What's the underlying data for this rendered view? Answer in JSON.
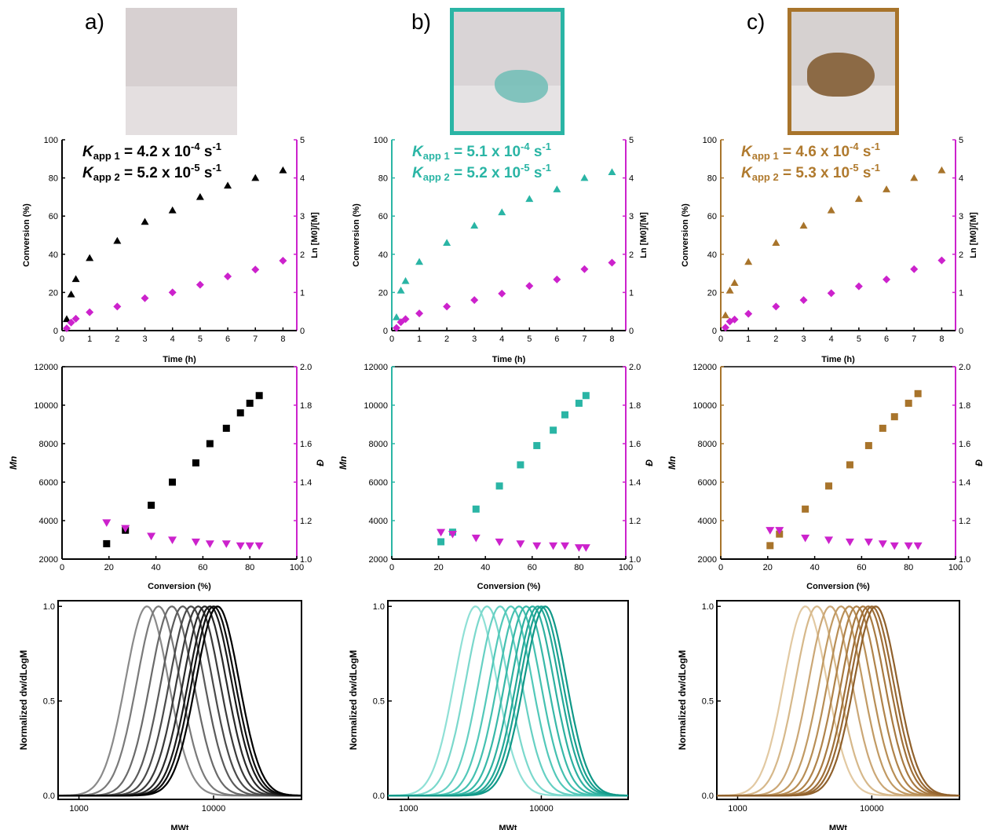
{
  "columns": [
    {
      "label": "a)",
      "color": "#000000",
      "frame": null,
      "ann": [
        {
          "pre": "app 1",
          "val": "4.2 x 10",
          "exp": "-4"
        },
        {
          "pre": "app 2",
          "val": "5.2 x 10",
          "exp": "-5"
        }
      ],
      "ann_color": "#000000",
      "mw_colors": [
        "#8a8a8a",
        "#7a7a7a",
        "#6a6a6a",
        "#5a5a5a",
        "#4a4a4a",
        "#3a3a3a",
        "#2a2a2a",
        "#1a1a1a",
        "#0d0d0d",
        "#000000"
      ]
    },
    {
      "label": "b)",
      "color": "#2ab5a5",
      "frame": "#2ab5a5",
      "ann": [
        {
          "pre": "app 1",
          "val": "5.1 x 10",
          "exp": "-4"
        },
        {
          "pre": "app 2",
          "val": "5.2 x 10",
          "exp": "-5"
        }
      ],
      "ann_color": "#2ab5a5",
      "mw_colors": [
        "#8fe0d6",
        "#7ad8cc",
        "#66d0c3",
        "#52c8b9",
        "#44c0b0",
        "#38b8a8",
        "#2eb0a0",
        "#24a898",
        "#1aa090",
        "#119888"
      ]
    },
    {
      "label": "c)",
      "color": "#a8742b",
      "frame": "#a8742b",
      "ann": [
        {
          "pre": "app 1",
          "val": "4.6 x 10",
          "exp": "-4"
        },
        {
          "pre": "app 2",
          "val": "5.3 x 10",
          "exp": "-5"
        }
      ],
      "ann_color": "#b07a2e",
      "mw_colors": [
        "#e2c9a2",
        "#d6b88a",
        "#cba776",
        "#c19a63",
        "#b88e55",
        "#b0834a",
        "#a87a41",
        "#a07039",
        "#986832",
        "#90612c"
      ]
    }
  ],
  "chart_data": [
    {
      "type": "scatter",
      "panel": "kinetics",
      "xlabel": "Time (h)",
      "ylabel": "Conversion (%)",
      "y2label": "Ln [M0]/[M]",
      "xlim": [
        0,
        8.5
      ],
      "ylim": [
        0,
        100
      ],
      "y2lim": [
        0,
        5
      ],
      "xticks": [
        "0",
        "1",
        "2",
        "3",
        "4",
        "5",
        "6",
        "7",
        "8"
      ],
      "yticks": [
        "0",
        "20",
        "40",
        "60",
        "80",
        "100"
      ],
      "y2ticks": [
        "0",
        "1",
        "2",
        "3",
        "4",
        "5"
      ],
      "series_ids": [
        "conversion",
        "ln_m0_m"
      ],
      "columns": [
        {
          "conversion": {
            "x": [
              0.17,
              0.33,
              0.5,
              1,
              2,
              3,
              4,
              5,
              6,
              7,
              8
            ],
            "y": [
              6,
              19,
              27,
              38,
              47,
              57,
              63,
              70,
              76,
              80,
              84
            ]
          },
          "ln_m0_m": {
            "x": [
              0.17,
              0.33,
              0.5,
              1,
              2,
              3,
              4,
              5,
              6,
              7,
              8
            ],
            "y": [
              0.06,
              0.21,
              0.31,
              0.48,
              0.63,
              0.85,
              1.0,
              1.2,
              1.42,
              1.6,
              1.83
            ]
          }
        },
        {
          "conversion": {
            "x": [
              0.17,
              0.33,
              0.5,
              1,
              2,
              3,
              4,
              5,
              6,
              7,
              8
            ],
            "y": [
              7,
              21,
              26,
              36,
              46,
              55,
              62,
              69,
              74,
              80,
              83
            ]
          },
          "ln_m0_m": {
            "x": [
              0.17,
              0.33,
              0.5,
              1,
              2,
              3,
              4,
              5,
              6,
              7,
              8
            ],
            "y": [
              0.07,
              0.22,
              0.3,
              0.45,
              0.63,
              0.8,
              0.97,
              1.17,
              1.34,
              1.61,
              1.78
            ]
          }
        },
        {
          "conversion": {
            "x": [
              0.17,
              0.33,
              0.5,
              1,
              2,
              3,
              4,
              5,
              6,
              7,
              8
            ],
            "y": [
              8,
              21,
              25,
              36,
              46,
              55,
              63,
              69,
              74,
              80,
              84
            ]
          },
          "ln_m0_m": {
            "x": [
              0.17,
              0.33,
              0.5,
              1,
              2,
              3,
              4,
              5,
              6,
              7,
              8
            ],
            "y": [
              0.08,
              0.24,
              0.29,
              0.44,
              0.63,
              0.8,
              0.98,
              1.16,
              1.34,
              1.61,
              1.84
            ]
          }
        }
      ]
    },
    {
      "type": "scatter",
      "panel": "mn_vs_conversion",
      "xlabel": "Conversion (%)",
      "ylabel": "Mn",
      "y2label": "Đ",
      "xlim": [
        0,
        100
      ],
      "ylim": [
        2000,
        12000
      ],
      "y2lim": [
        1.0,
        2.0
      ],
      "xticks": [
        "0",
        "20",
        "40",
        "60",
        "80",
        "100"
      ],
      "yticks": [
        "2000",
        "4000",
        "6000",
        "8000",
        "10000",
        "12000"
      ],
      "y2ticks": [
        "1.0",
        "1.2",
        "1.4",
        "1.6",
        "1.8",
        "2.0"
      ],
      "series_ids": [
        "mn",
        "dispersity"
      ],
      "columns": [
        {
          "mn": {
            "x": [
              19,
              27,
              38,
              47,
              57,
              63,
              70,
              76,
              80,
              84
            ],
            "y": [
              2800,
              3500,
              4800,
              6000,
              7000,
              8000,
              8800,
              9600,
              10100,
              10500
            ]
          },
          "dispersity": {
            "x": [
              19,
              27,
              38,
              47,
              57,
              63,
              70,
              76,
              80,
              84
            ],
            "y": [
              1.19,
              1.16,
              1.12,
              1.1,
              1.09,
              1.08,
              1.08,
              1.07,
              1.07,
              1.07
            ]
          }
        },
        {
          "mn": {
            "x": [
              21,
              26,
              36,
              46,
              55,
              62,
              69,
              74,
              80,
              83
            ],
            "y": [
              2900,
              3400,
              4600,
              5800,
              6900,
              7900,
              8700,
              9500,
              10100,
              10500
            ]
          },
          "dispersity": {
            "x": [
              21,
              26,
              36,
              46,
              55,
              62,
              69,
              74,
              80,
              83
            ],
            "y": [
              1.14,
              1.13,
              1.11,
              1.09,
              1.08,
              1.07,
              1.07,
              1.07,
              1.06,
              1.06
            ]
          }
        },
        {
          "mn": {
            "x": [
              21,
              25,
              36,
              46,
              55,
              63,
              69,
              74,
              80,
              84
            ],
            "y": [
              2700,
              3300,
              4600,
              5800,
              6900,
              7900,
              8800,
              9400,
              10100,
              10600
            ]
          },
          "dispersity": {
            "x": [
              21,
              25,
              36,
              46,
              55,
              63,
              69,
              74,
              80,
              84
            ],
            "y": [
              1.15,
              1.15,
              1.11,
              1.1,
              1.09,
              1.09,
              1.08,
              1.07,
              1.07,
              1.07
            ]
          }
        }
      ]
    },
    {
      "type": "line",
      "panel": "mwd",
      "xlabel": "MWt",
      "ylabel": "Normalized dw/dLogM",
      "xscale": "log",
      "xlim": [
        700,
        45000
      ],
      "ylim": [
        -0.02,
        1.03
      ],
      "xticks": [
        "1000",
        "10000"
      ],
      "yticks": [
        "0.0",
        "0.5",
        "1.0"
      ],
      "peak_mw": [
        3200,
        3900,
        4900,
        5900,
        6800,
        7700,
        8600,
        9400,
        10000,
        10700
      ],
      "log_width": 0.16
    }
  ]
}
